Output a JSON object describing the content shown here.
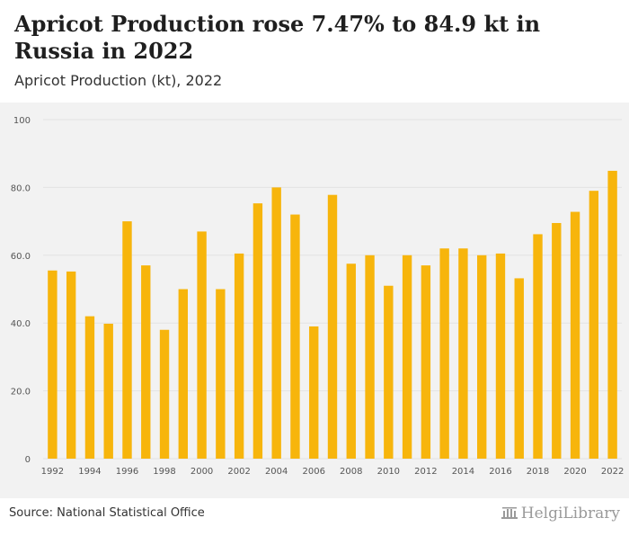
{
  "header": {
    "title": "Apricot Production rose 7.47% to 84.9 kt in Russia in 2022",
    "subtitle": "Apricot Production (kt), 2022"
  },
  "footer": {
    "source": "Source: National Statistical Office",
    "logo_text": "HelgiLibrary"
  },
  "colors": {
    "bar": "#f7b50c",
    "grid": "#e3e3e3",
    "plot_bg": "#f2f2f2",
    "tick_text": "#555555"
  },
  "chart_data": {
    "type": "bar",
    "title": "Apricot Production (kt), 2022",
    "xlabel": "",
    "ylabel": "",
    "ylim": [
      0,
      100
    ],
    "yticks": [
      0,
      20,
      40,
      60,
      80,
      100
    ],
    "ytick_labels": [
      "0",
      "20.0",
      "40.0",
      "60.0",
      "80.0",
      "100"
    ],
    "grid": true,
    "categories": [
      "1992",
      "1993",
      "1994",
      "1995",
      "1996",
      "1997",
      "1998",
      "1999",
      "2000",
      "2001",
      "2002",
      "2003",
      "2004",
      "2005",
      "2006",
      "2007",
      "2008",
      "2009",
      "2010",
      "2011",
      "2012",
      "2013",
      "2014",
      "2015",
      "2016",
      "2017",
      "2018",
      "2019",
      "2020",
      "2021",
      "2022"
    ],
    "x_labeled": [
      "1992",
      "1994",
      "1996",
      "1998",
      "2000",
      "2002",
      "2004",
      "2006",
      "2008",
      "2010",
      "2012",
      "2014",
      "2016",
      "2018",
      "2020",
      "2022"
    ],
    "values": [
      55.5,
      55.2,
      42.0,
      39.8,
      70.0,
      57.0,
      38.0,
      50.0,
      67.0,
      50.0,
      60.5,
      75.3,
      80.0,
      72.0,
      39.0,
      77.8,
      57.5,
      60.0,
      51.0,
      60.0,
      57.0,
      62.0,
      62.0,
      60.0,
      60.5,
      53.2,
      66.2,
      69.5,
      72.8,
      79.0,
      84.9
    ]
  }
}
